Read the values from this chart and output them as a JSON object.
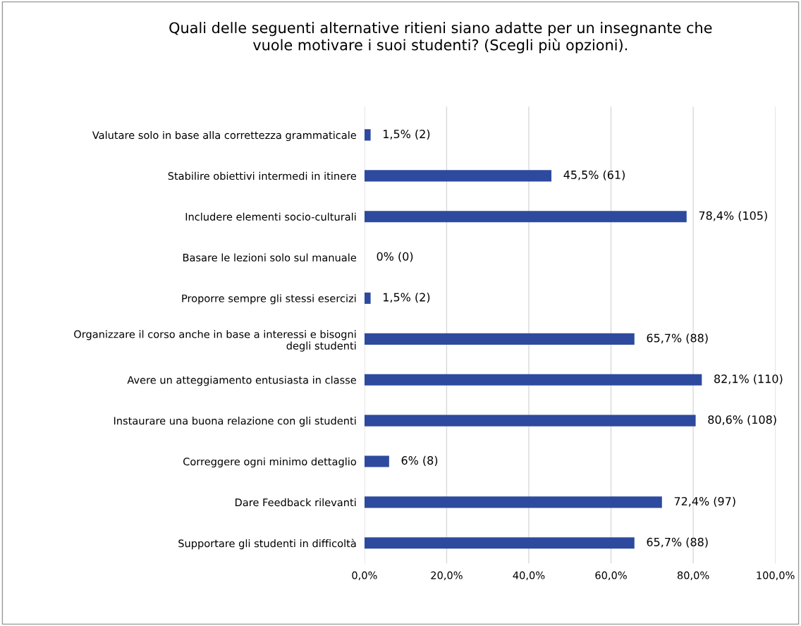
{
  "chart_data": {
    "type": "bar",
    "orientation": "horizontal",
    "title": "Quali delle seguenti alternative ritieni siano adatte per un insegnante che\nvuole motivare i suoi studenti? (Scegli più opzioni).",
    "categories": [
      "Valutare solo in base alla correttezza grammaticale",
      "Stabilire obiettivi intermedi in itinere",
      "Includere elementi socio-culturali",
      "Basare le lezioni solo sul manuale",
      "Proporre sempre gli stessi esercizi",
      "Organizzare il corso anche in base a interessi e bisogni\ndegli studenti",
      "Avere un atteggiamento entusiasta in classe",
      "Instaurare una buona relazione con gli studenti",
      "Correggere ogni minimo dettaglio",
      "Dare Feedback rilevanti",
      "Supportare gli studenti in difficoltà"
    ],
    "values": [
      1.5,
      45.5,
      78.4,
      0,
      1.5,
      65.7,
      82.1,
      80.6,
      6,
      72.4,
      65.7
    ],
    "value_labels": [
      "1,5% (2)",
      "45,5% (61)",
      "78,4% (105)",
      "0% (0)",
      "1,5% (2)",
      "65,7% (88)",
      "82,1% (110)",
      "80,6% (108)",
      "6% (8)",
      "72,4% (97)",
      "65,7% (88)"
    ],
    "color": "#2e4a9e",
    "xlim": [
      0,
      100
    ],
    "xticks": [
      {
        "value": 0,
        "label": "0,0%"
      },
      {
        "value": 20,
        "label": "20,0%"
      },
      {
        "value": 40,
        "label": "40,0%"
      },
      {
        "value": 60,
        "label": "60,0%"
      },
      {
        "value": 80,
        "label": "80,0%"
      },
      {
        "value": 100,
        "label": "100,0%"
      }
    ],
    "grid": "x"
  }
}
